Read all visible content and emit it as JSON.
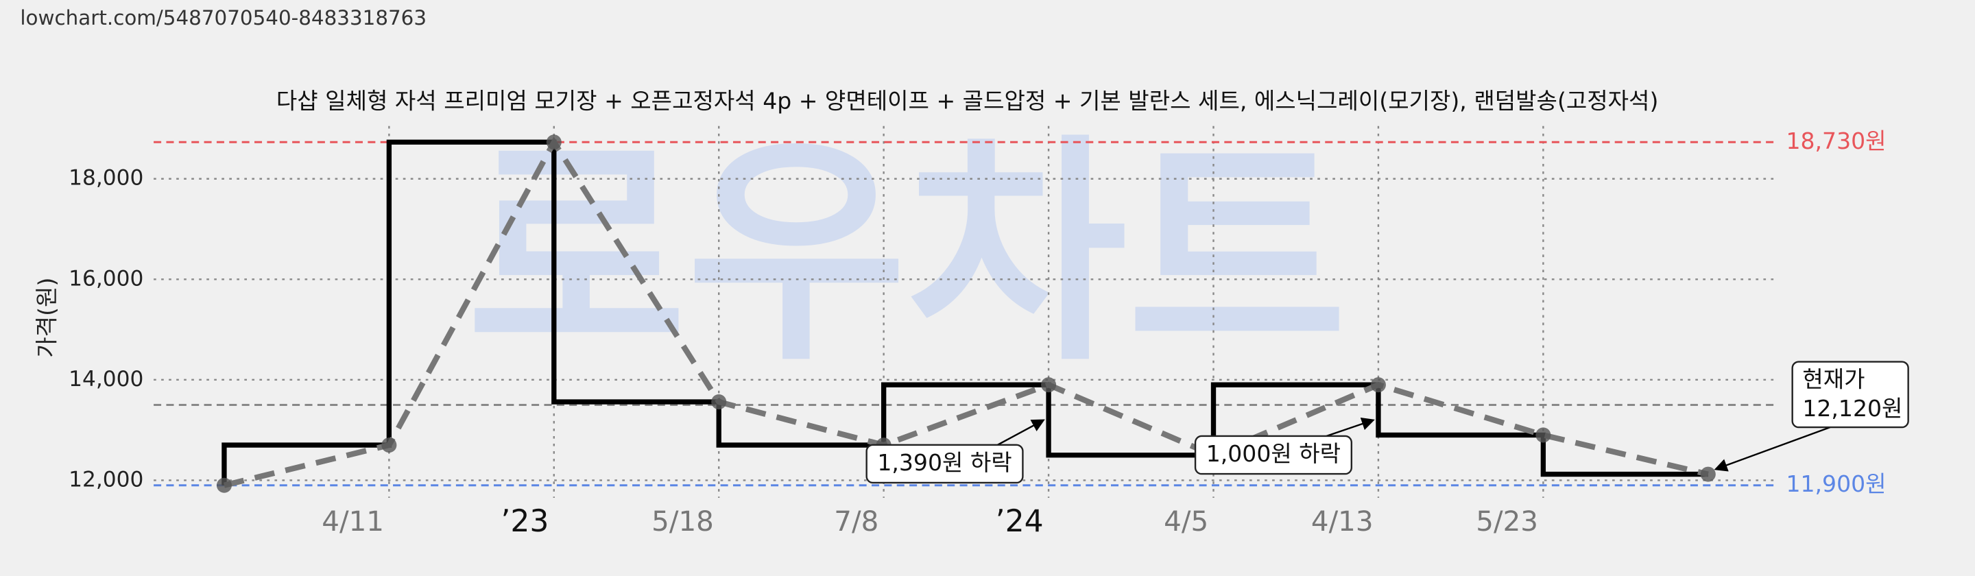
{
  "header": {
    "url": "lowchart.com/5487070540-8483318763"
  },
  "chart_data": {
    "type": "price-step",
    "title": "다샵 일체형 자석 프리미엄 모기장 + 오픈고정자석 4p + 양면테이프 + 골드압정 + 기본 발란스 세트, 에스닉그레이(모기장), 랜덤발송(고정자석)",
    "watermark": "로우차트",
    "y_label": "가격(원)",
    "categories": [
      null,
      "4/11",
      "’23",
      "5/18",
      "7/8",
      "’24",
      "4/5",
      "4/13",
      "5/23",
      null
    ],
    "series": [
      {
        "color": "#000000",
        "values": [
          11900,
          12700,
          18730,
          13560,
          12700,
          13900,
          12500,
          13900,
          12900,
          12120
        ]
      }
    ],
    "ylim": [
      11650,
      19050
    ],
    "yticks": [
      {
        "value": 12000,
        "label": "12,000"
      },
      {
        "value": 14000,
        "label": "14,000"
      },
      {
        "value": 16000,
        "label": "16,000"
      },
      {
        "value": 18000,
        "label": "18,000"
      }
    ],
    "grid": true,
    "reference_lines": [
      {
        "value": 18730,
        "label": "18,730원",
        "color": "#e8555a"
      },
      {
        "value": 11900,
        "label": "11,900원",
        "color": "#5b86e5"
      },
      {
        "value": 13500,
        "color": "#888888"
      }
    ],
    "annotations": [
      {
        "index": 5,
        "lines": [
          "1,390원 하락"
        ]
      },
      {
        "index": 7,
        "lines": [
          "1,000원 하락"
        ]
      },
      {
        "index": 9,
        "lines": [
          "현재가",
          "12,120원"
        ]
      }
    ]
  }
}
